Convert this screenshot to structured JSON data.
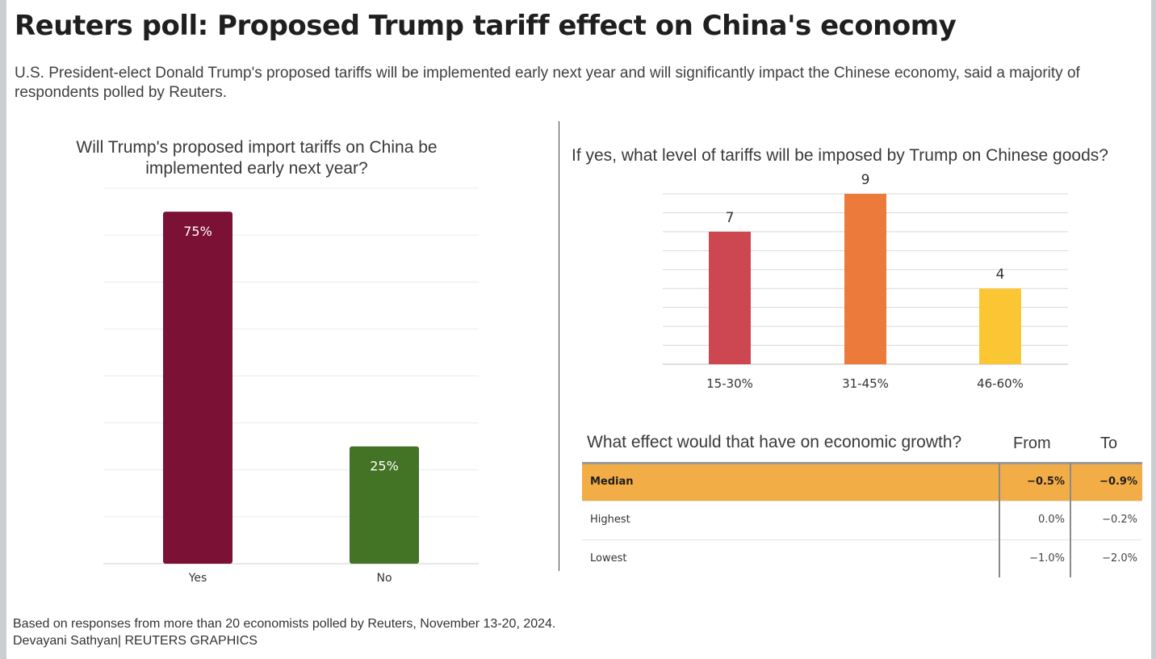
{
  "title": "Reuters poll: Proposed Trump tariff effect on China's economy",
  "subtitle": "U.S. President-elect Donald Trump's proposed tariffs will be implemented early next year and will significantly impact the Chinese economy, said a majority of respondents polled by Reuters.",
  "chart_data": [
    {
      "type": "bar",
      "title": "Will Trump's proposed import tariffs on China be implemented early next year?",
      "categories": [
        "Yes",
        "No"
      ],
      "values": [
        75,
        25
      ],
      "value_labels": [
        "75%",
        "25%"
      ],
      "colors": [
        "#7b1135",
        "#437324"
      ],
      "ylim": [
        0,
        80
      ],
      "grid": true,
      "legend": "none"
    },
    {
      "type": "bar",
      "title": "If yes, what level of tariffs will be imposed by Trump on Chinese goods?",
      "categories": [
        "15-30%",
        "31-45%",
        "46-60%"
      ],
      "values": [
        7,
        9,
        4
      ],
      "value_labels": [
        "7",
        "9",
        "4"
      ],
      "colors": [
        "#cc4750",
        "#ec7a3b",
        "#fbc633"
      ],
      "ylim": [
        0,
        9
      ],
      "grid": true,
      "legend": "none"
    }
  ],
  "effect_table": {
    "question": "What effect would that have on economic growth?",
    "col_from": "From",
    "col_to": "To",
    "highlight_color": "#f3ad47",
    "rows": [
      {
        "label": "Median",
        "from": "−0.5%",
        "to": "−0.9%"
      },
      {
        "label": "Highest",
        "from": "0.0%",
        "to": "−0.2%"
      },
      {
        "label": "Lowest",
        "from": "−1.0%",
        "to": "−2.0%"
      }
    ]
  },
  "footnote": {
    "source": "Based on responses from more than 20 economists polled by Reuters, November 13-20, 2024.",
    "credit": "Devayani Sathyan| REUTERS GRAPHICS"
  }
}
